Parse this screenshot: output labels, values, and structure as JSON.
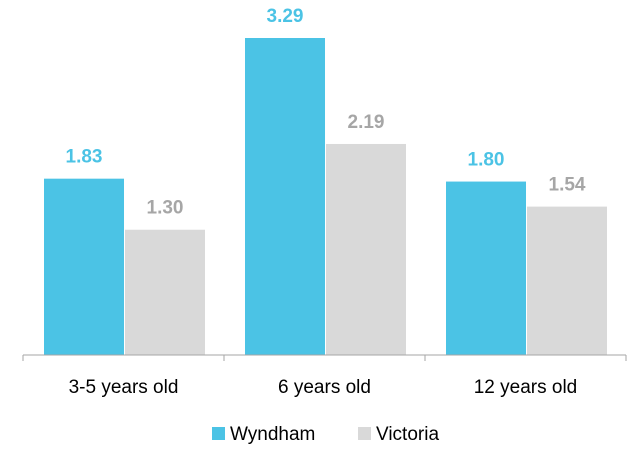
{
  "chart_data": {
    "type": "bar",
    "categories": [
      "3-5 years old",
      "6 years old",
      "12 years old"
    ],
    "series": [
      {
        "name": "Wyndham",
        "values": [
          1.83,
          3.29,
          1.8
        ],
        "labels": [
          "1.83",
          "3.29",
          "1.80"
        ],
        "color": "#4bc3e5",
        "label_color": "#4bc3e5"
      },
      {
        "name": "Victoria",
        "values": [
          1.3,
          2.19,
          1.54
        ],
        "labels": [
          "1.30",
          "2.19",
          "1.54"
        ],
        "color": "#d9d9d9",
        "label_color": "#a6a6a6"
      }
    ],
    "title": "",
    "xlabel": "",
    "ylabel": "",
    "ylim": [
      0,
      3.5
    ],
    "grid": false,
    "legend": "bottom-center",
    "axis_color": "#a6a6a6"
  }
}
